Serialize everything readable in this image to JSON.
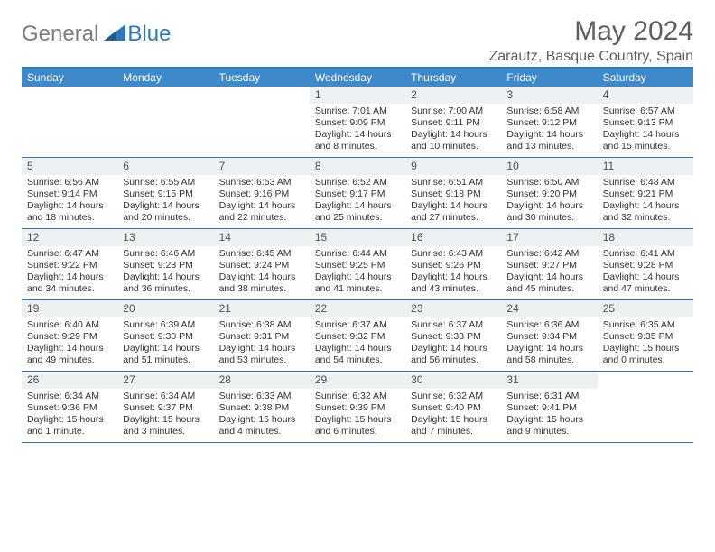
{
  "brand": {
    "part1": "General",
    "part2": "Blue",
    "tri_color": "#2f77bb",
    "text_gray": "#7a7f85"
  },
  "title": "May 2024",
  "location": "Zarautz, Basque Country, Spain",
  "header_bg": "#3e89c9",
  "accent": "#2f77bb",
  "daynum_bg": "#eef0f2",
  "weekdays": [
    "Sunday",
    "Monday",
    "Tuesday",
    "Wednesday",
    "Thursday",
    "Friday",
    "Saturday"
  ],
  "weeks": [
    [
      null,
      null,
      null,
      {
        "d": "1",
        "sr": "7:01 AM",
        "ss": "9:09 PM",
        "dl": "14 hours and 8 minutes."
      },
      {
        "d": "2",
        "sr": "7:00 AM",
        "ss": "9:11 PM",
        "dl": "14 hours and 10 minutes."
      },
      {
        "d": "3",
        "sr": "6:58 AM",
        "ss": "9:12 PM",
        "dl": "14 hours and 13 minutes."
      },
      {
        "d": "4",
        "sr": "6:57 AM",
        "ss": "9:13 PM",
        "dl": "14 hours and 15 minutes."
      }
    ],
    [
      {
        "d": "5",
        "sr": "6:56 AM",
        "ss": "9:14 PM",
        "dl": "14 hours and 18 minutes."
      },
      {
        "d": "6",
        "sr": "6:55 AM",
        "ss": "9:15 PM",
        "dl": "14 hours and 20 minutes."
      },
      {
        "d": "7",
        "sr": "6:53 AM",
        "ss": "9:16 PM",
        "dl": "14 hours and 22 minutes."
      },
      {
        "d": "8",
        "sr": "6:52 AM",
        "ss": "9:17 PM",
        "dl": "14 hours and 25 minutes."
      },
      {
        "d": "9",
        "sr": "6:51 AM",
        "ss": "9:18 PM",
        "dl": "14 hours and 27 minutes."
      },
      {
        "d": "10",
        "sr": "6:50 AM",
        "ss": "9:20 PM",
        "dl": "14 hours and 30 minutes."
      },
      {
        "d": "11",
        "sr": "6:48 AM",
        "ss": "9:21 PM",
        "dl": "14 hours and 32 minutes."
      }
    ],
    [
      {
        "d": "12",
        "sr": "6:47 AM",
        "ss": "9:22 PM",
        "dl": "14 hours and 34 minutes."
      },
      {
        "d": "13",
        "sr": "6:46 AM",
        "ss": "9:23 PM",
        "dl": "14 hours and 36 minutes."
      },
      {
        "d": "14",
        "sr": "6:45 AM",
        "ss": "9:24 PM",
        "dl": "14 hours and 38 minutes."
      },
      {
        "d": "15",
        "sr": "6:44 AM",
        "ss": "9:25 PM",
        "dl": "14 hours and 41 minutes."
      },
      {
        "d": "16",
        "sr": "6:43 AM",
        "ss": "9:26 PM",
        "dl": "14 hours and 43 minutes."
      },
      {
        "d": "17",
        "sr": "6:42 AM",
        "ss": "9:27 PM",
        "dl": "14 hours and 45 minutes."
      },
      {
        "d": "18",
        "sr": "6:41 AM",
        "ss": "9:28 PM",
        "dl": "14 hours and 47 minutes."
      }
    ],
    [
      {
        "d": "19",
        "sr": "6:40 AM",
        "ss": "9:29 PM",
        "dl": "14 hours and 49 minutes."
      },
      {
        "d": "20",
        "sr": "6:39 AM",
        "ss": "9:30 PM",
        "dl": "14 hours and 51 minutes."
      },
      {
        "d": "21",
        "sr": "6:38 AM",
        "ss": "9:31 PM",
        "dl": "14 hours and 53 minutes."
      },
      {
        "d": "22",
        "sr": "6:37 AM",
        "ss": "9:32 PM",
        "dl": "14 hours and 54 minutes."
      },
      {
        "d": "23",
        "sr": "6:37 AM",
        "ss": "9:33 PM",
        "dl": "14 hours and 56 minutes."
      },
      {
        "d": "24",
        "sr": "6:36 AM",
        "ss": "9:34 PM",
        "dl": "14 hours and 58 minutes."
      },
      {
        "d": "25",
        "sr": "6:35 AM",
        "ss": "9:35 PM",
        "dl": "15 hours and 0 minutes."
      }
    ],
    [
      {
        "d": "26",
        "sr": "6:34 AM",
        "ss": "9:36 PM",
        "dl": "15 hours and 1 minute."
      },
      {
        "d": "27",
        "sr": "6:34 AM",
        "ss": "9:37 PM",
        "dl": "15 hours and 3 minutes."
      },
      {
        "d": "28",
        "sr": "6:33 AM",
        "ss": "9:38 PM",
        "dl": "15 hours and 4 minutes."
      },
      {
        "d": "29",
        "sr": "6:32 AM",
        "ss": "9:39 PM",
        "dl": "15 hours and 6 minutes."
      },
      {
        "d": "30",
        "sr": "6:32 AM",
        "ss": "9:40 PM",
        "dl": "15 hours and 7 minutes."
      },
      {
        "d": "31",
        "sr": "6:31 AM",
        "ss": "9:41 PM",
        "dl": "15 hours and 9 minutes."
      },
      null
    ]
  ],
  "labels": {
    "sunrise": "Sunrise:",
    "sunset": "Sunset:",
    "daylight": "Daylight:"
  }
}
